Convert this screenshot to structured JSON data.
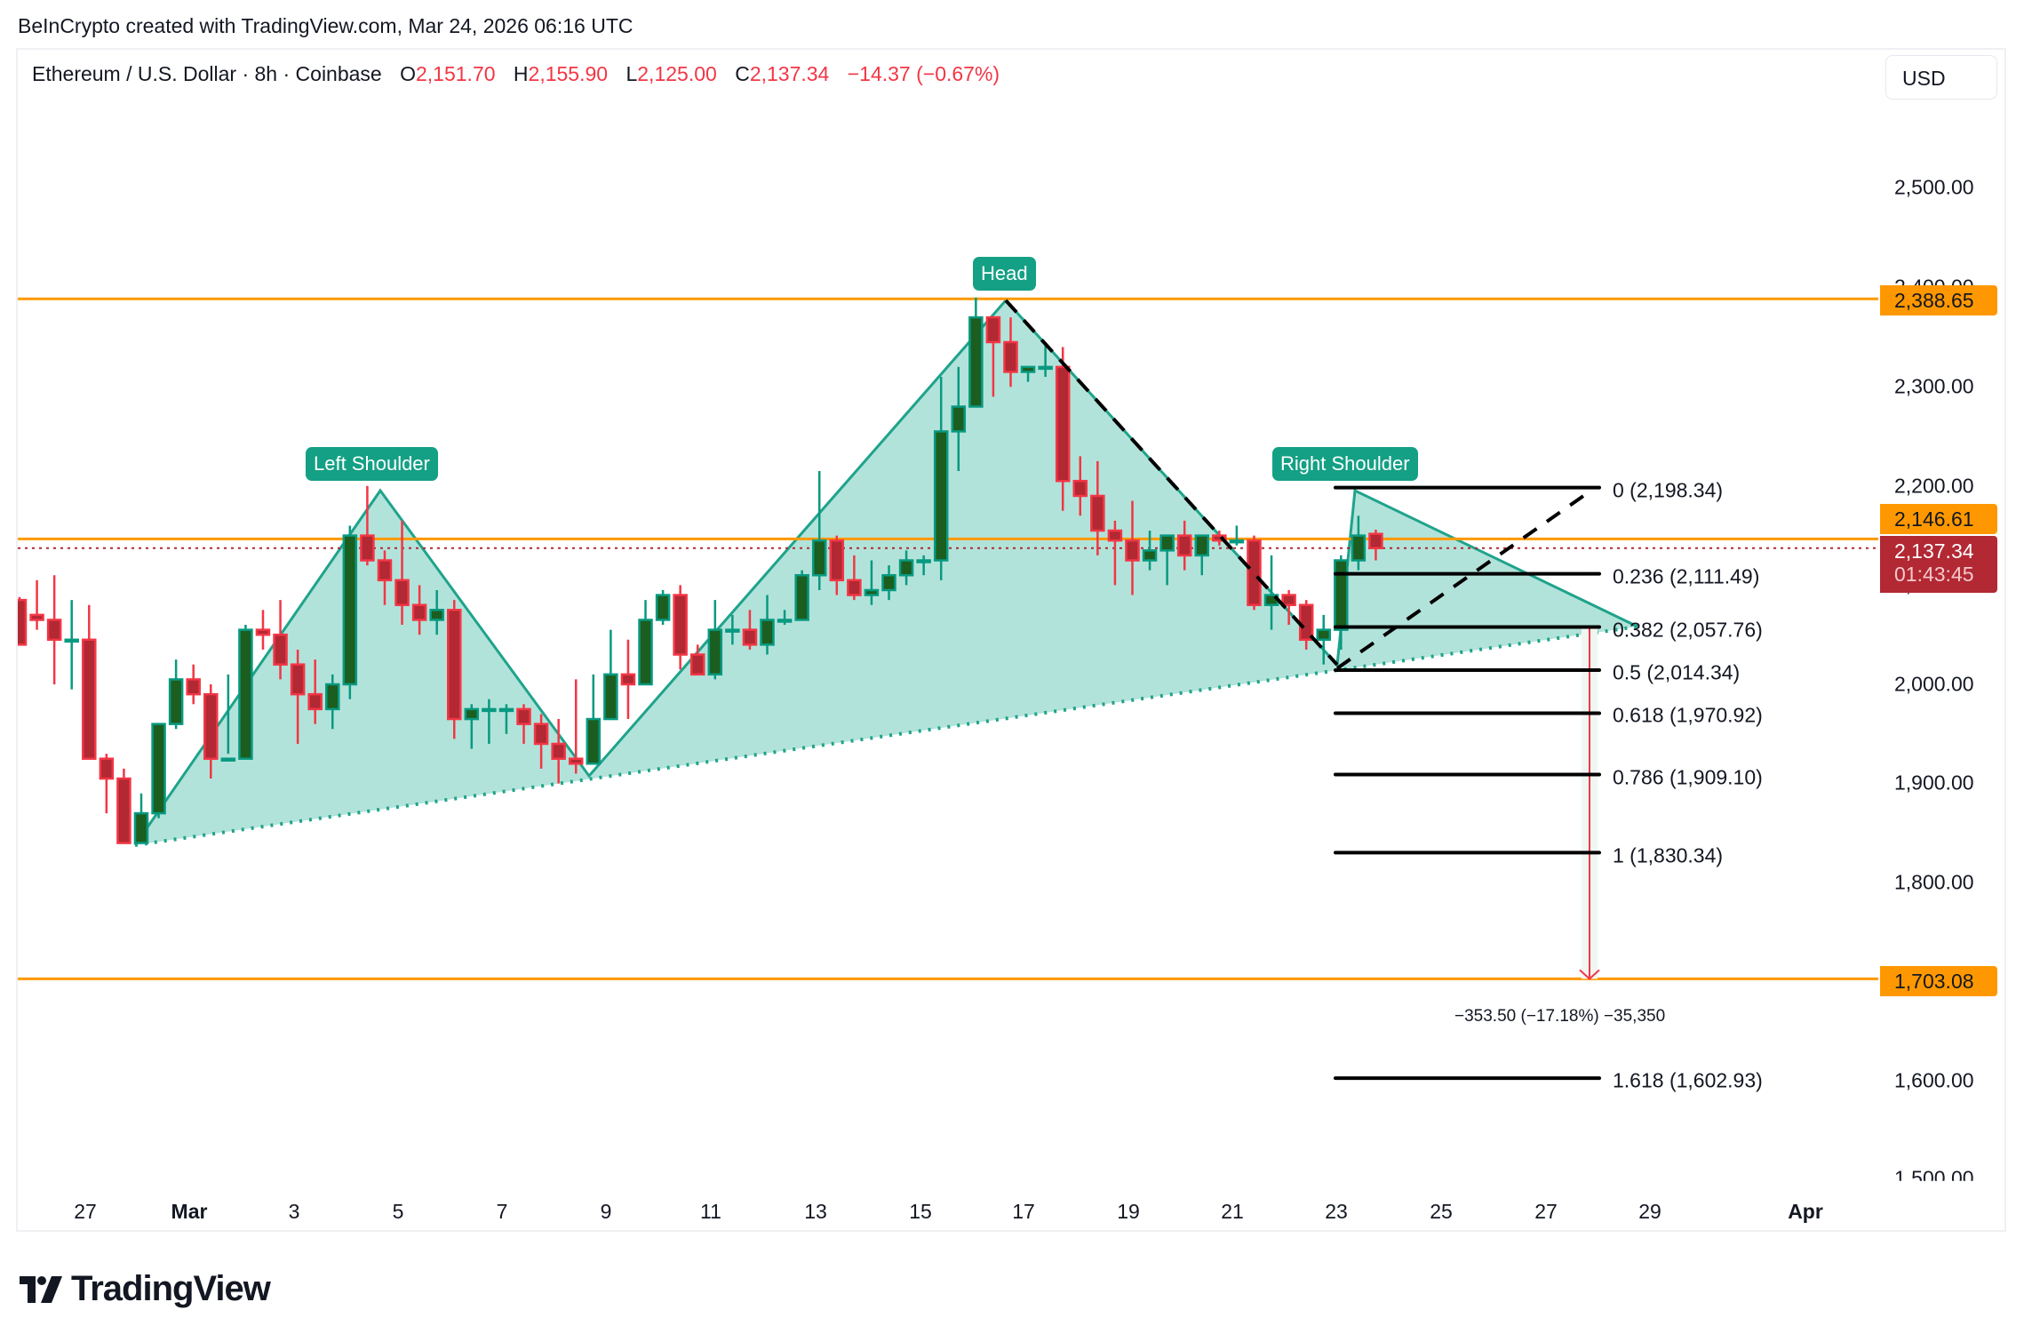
{
  "credit": "BeInCrypto created with TradingView.com, Mar 24, 2026 06:16 UTC",
  "legend": {
    "symbol": "Ethereum / U.S. Dollar · 8h · Coinbase",
    "o_label": "O",
    "o": "2,151.70",
    "h_label": "H",
    "h": "2,155.90",
    "l_label": "L",
    "l": "2,125.00",
    "c_label": "C",
    "c": "2,137.34",
    "change": "−14.37 (−0.67%)"
  },
  "currency_button": "USD",
  "price_axis": {
    "ticks": [
      "2,500.00",
      "2,400.00",
      "2,300.00",
      "2,200.00",
      "2,100.00",
      "2,000.00",
      "1,900.00",
      "1,800.00",
      "1,600.00",
      "1,500.00"
    ],
    "tags": {
      "resistance_top": "2,388.65",
      "neckline": "2,146.61",
      "last_price": "2,137.34",
      "countdown": "01:43:45",
      "target": "1,703.08"
    }
  },
  "time_axis": [
    "27",
    "Mar",
    "3",
    "5",
    "7",
    "9",
    "11",
    "13",
    "15",
    "17",
    "19",
    "21",
    "23",
    "25",
    "27",
    "29",
    "Apr"
  ],
  "pattern_labels": {
    "left_shoulder": "Left Shoulder",
    "head": "Head",
    "right_shoulder": "Right Shoulder"
  },
  "fib_levels": [
    {
      "label": "0 (2,198.34)"
    },
    {
      "label": "0.236 (2,111.49)"
    },
    {
      "label": "0.382 (2,057.76)"
    },
    {
      "label": "0.5 (2,014.34)"
    },
    {
      "label": "0.618 (1,970.92)"
    },
    {
      "label": "0.786 (1,909.10)"
    },
    {
      "label": "1 (1,830.34)"
    },
    {
      "label": "1.618 (1,602.93)"
    }
  ],
  "measure_label": "−353.50 (−17.18%) −35,350",
  "brand": "TradingView",
  "colors": {
    "up_body": "#1b5e20",
    "up_border": "#089981",
    "down_body": "#b22833",
    "down_border": "#f23645",
    "pattern_fill": "#b2e3da",
    "pattern_line": "#1fa38b",
    "orange": "#ff9800",
    "label_teal": "#14a085"
  },
  "chart_data": {
    "type": "candlestick",
    "title": "Ethereum / U.S. Dollar · 8h · Coinbase",
    "xlabel": "",
    "ylabel": "USD",
    "ylim": [
      1490,
      2560
    ],
    "grid": false,
    "x_ticks": [
      "27",
      "Mar",
      "3",
      "5",
      "7",
      "9",
      "11",
      "13",
      "15",
      "17",
      "19",
      "21",
      "23",
      "25",
      "27",
      "29",
      "Apr"
    ],
    "y_ticks": [
      1500,
      1600,
      1800,
      1900,
      2000,
      2100,
      2200,
      2300,
      2400,
      2500
    ],
    "last": {
      "open": 2151.7,
      "high": 2155.9,
      "low": 2125.0,
      "close": 2137.34,
      "change": -14.37,
      "change_pct": -0.67
    },
    "horizontal_lines": [
      {
        "name": "resistance",
        "value": 2388.65,
        "color": "#ff9800"
      },
      {
        "name": "neckline",
        "value": 2146.61,
        "color": "#ff9800"
      },
      {
        "name": "target",
        "value": 1703.08,
        "color": "#ff9800"
      }
    ],
    "fibonacci": [
      {
        "ratio": 0,
        "value": 2198.34
      },
      {
        "ratio": 0.236,
        "value": 2111.49
      },
      {
        "ratio": 0.382,
        "value": 2057.76
      },
      {
        "ratio": 0.5,
        "value": 2014.34
      },
      {
        "ratio": 0.618,
        "value": 1970.92
      },
      {
        "ratio": 0.786,
        "value": 1909.1
      },
      {
        "ratio": 1,
        "value": 1830.34
      },
      {
        "ratio": 1.618,
        "value": 1602.93
      }
    ],
    "measurement": {
      "from": 2057.76,
      "to": 1703.08,
      "change": -353.5,
      "change_pct": -17.18,
      "ticks": -35350
    },
    "pattern": {
      "name": "Head and Shoulders",
      "points": [
        {
          "name": "start",
          "date": "Feb 28",
          "price": 1835
        },
        {
          "name": "left_shoulder",
          "date": "Mar 4",
          "price": 2198
        },
        {
          "name": "trough1",
          "date": "Mar 8",
          "price": 1905
        },
        {
          "name": "head",
          "date": "Mar 16",
          "price": 2388
        },
        {
          "name": "trough2",
          "date": "Mar 23",
          "price": 2020
        },
        {
          "name": "right_shoulder",
          "date": "Mar 23",
          "price": 2198
        },
        {
          "name": "end",
          "date": "Mar 28",
          "price": 2060
        }
      ]
    },
    "candles": [
      [
        2085,
        2088,
        2040,
        2040
      ],
      [
        2070,
        2105,
        2055,
        2065
      ],
      [
        2065,
        2110,
        2000,
        2045
      ],
      [
        2045,
        2085,
        1995,
        2045
      ],
      [
        2045,
        2080,
        1975,
        1925
      ],
      [
        1925,
        1930,
        1870,
        1905
      ],
      [
        1905,
        1915,
        1840,
        1840
      ],
      [
        1840,
        1890,
        1845,
        1870
      ],
      [
        1870,
        1950,
        1865,
        1960
      ],
      [
        1960,
        2025,
        1955,
        2005
      ],
      [
        2005,
        2020,
        1980,
        1990
      ],
      [
        1990,
        2000,
        1905,
        1925
      ],
      [
        1925,
        2010,
        1930,
        1925
      ],
      [
        1925,
        2060,
        1925,
        2055
      ],
      [
        2055,
        2075,
        2035,
        2050
      ],
      [
        2050,
        2085,
        2005,
        2020
      ],
      [
        2020,
        2035,
        1940,
        1990
      ],
      [
        1990,
        2025,
        1960,
        1975
      ],
      [
        1975,
        2010,
        1955,
        2000
      ],
      [
        2000,
        2160,
        1985,
        2150
      ],
      [
        2150,
        2200,
        2120,
        2125
      ],
      [
        2125,
        2135,
        2080,
        2105
      ],
      [
        2105,
        2165,
        2060,
        2080
      ],
      [
        2080,
        2100,
        2050,
        2065
      ],
      [
        2065,
        2095,
        2050,
        2075
      ],
      [
        2075,
        2085,
        1945,
        1965
      ],
      [
        1965,
        1980,
        1935,
        1975
      ],
      [
        1975,
        1985,
        1940,
        1975
      ],
      [
        1975,
        1980,
        1950,
        1975
      ],
      [
        1975,
        1980,
        1940,
        1960
      ],
      [
        1960,
        1970,
        1915,
        1940
      ],
      [
        1940,
        1965,
        1900,
        1925
      ],
      [
        1925,
        2005,
        1910,
        1920
      ],
      [
        1920,
        2010,
        1920,
        1965
      ],
      [
        1965,
        2055,
        1965,
        2010
      ],
      [
        2010,
        2045,
        1965,
        2000
      ],
      [
        2000,
        2085,
        2000,
        2065
      ],
      [
        2065,
        2095,
        2060,
        2090
      ],
      [
        2090,
        2100,
        2015,
        2030
      ],
      [
        2030,
        2040,
        2010,
        2010
      ],
      [
        2010,
        2085,
        2005,
        2055
      ],
      [
        2055,
        2070,
        2040,
        2055
      ],
      [
        2055,
        2075,
        2035,
        2040
      ],
      [
        2040,
        2090,
        2030,
        2065
      ],
      [
        2065,
        2075,
        2060,
        2065
      ],
      [
        2065,
        2115,
        2065,
        2110
      ],
      [
        2110,
        2215,
        2095,
        2145
      ],
      [
        2145,
        2150,
        2090,
        2105
      ],
      [
        2105,
        2130,
        2085,
        2090
      ],
      [
        2090,
        2125,
        2080,
        2095
      ],
      [
        2095,
        2120,
        2085,
        2110
      ],
      [
        2110,
        2135,
        2100,
        2125
      ],
      [
        2125,
        2130,
        2110,
        2125
      ],
      [
        2125,
        2310,
        2105,
        2255
      ],
      [
        2255,
        2320,
        2215,
        2280
      ],
      [
        2280,
        2390,
        2280,
        2370
      ],
      [
        2370,
        2345,
        2290,
        2345
      ],
      [
        2345,
        2370,
        2300,
        2315
      ],
      [
        2315,
        2320,
        2305,
        2320
      ],
      [
        2320,
        2345,
        2310,
        2320
      ],
      [
        2320,
        2340,
        2175,
        2205
      ],
      [
        2205,
        2230,
        2170,
        2190
      ],
      [
        2190,
        2225,
        2130,
        2155
      ],
      [
        2155,
        2165,
        2100,
        2145
      ],
      [
        2145,
        2185,
        2090,
        2125
      ],
      [
        2125,
        2155,
        2115,
        2135
      ],
      [
        2135,
        2150,
        2100,
        2150
      ],
      [
        2150,
        2165,
        2115,
        2130
      ],
      [
        2130,
        2140,
        2110,
        2150
      ],
      [
        2150,
        2155,
        2140,
        2145
      ],
      [
        2145,
        2160,
        2140,
        2145
      ],
      [
        2145,
        2150,
        2075,
        2080
      ],
      [
        2080,
        2130,
        2055,
        2090
      ],
      [
        2090,
        2095,
        2060,
        2080
      ],
      [
        2080,
        2085,
        2035,
        2045
      ],
      [
        2045,
        2070,
        2020,
        2055
      ],
      [
        2055,
        2130,
        2035,
        2125
      ],
      [
        2125,
        2170,
        2115,
        2150
      ],
      [
        2151.7,
        2155.9,
        2125,
        2137.34
      ]
    ]
  }
}
